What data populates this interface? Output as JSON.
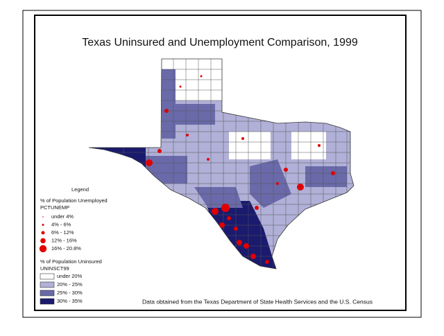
{
  "title": "Texas Uninsured and Unemployment Comparison, 1999",
  "legend": {
    "title": "Legend",
    "unemployment": {
      "heading": "% of Population Unemployed",
      "field": "PCTUNEMP",
      "classes": [
        "under 4%",
        "4% - 6%",
        "6% - 12%",
        "12% - 16%",
        "16% - 20.8%"
      ]
    },
    "uninsured": {
      "heading": "% of Population Uninsured",
      "field": "UNINSCT99",
      "classes": [
        "under 20%",
        "20% - 25%",
        "25% - 30%",
        "30% - 35%"
      ]
    }
  },
  "source": "Data obtained from the Texas Department of State Health Services and the U.S. Census"
}
